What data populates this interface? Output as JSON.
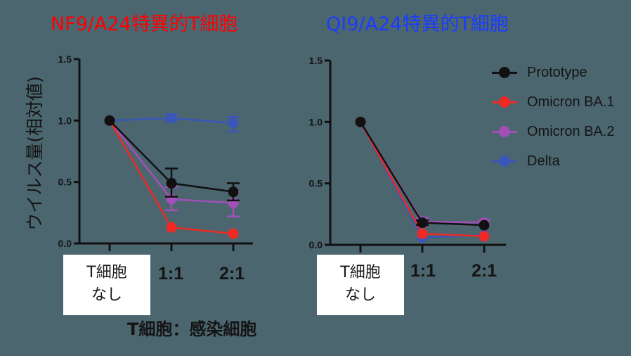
{
  "titles": {
    "left": "NF9/A24特異的T細胞",
    "right": "QI9/A24特異的T細胞"
  },
  "y_axis_label": "ウイルス量(相対値)",
  "x_axis_label": "T細胞：感染細胞",
  "no_tcell_label_line1": "T細胞",
  "no_tcell_label_line2": "なし",
  "x_categories": [
    "T細胞なし",
    "1:1",
    "2:1"
  ],
  "y_ticks": [
    "0.0",
    "0.5",
    "1.0",
    "1.5"
  ],
  "legend": [
    {
      "label": "Prototype",
      "color": "#111111"
    },
    {
      "label": "Omicron BA.1",
      "color": "#ee2a24"
    },
    {
      "label": "Omicron BA.2",
      "color": "#a24fb8"
    },
    {
      "label": "Delta",
      "color": "#3a56b8"
    }
  ],
  "chart_data": [
    {
      "type": "line",
      "title": "NF9/A24特異的T細胞",
      "xlabel": "T細胞：感染細胞",
      "ylabel": "ウイルス量(相対値)",
      "categories": [
        "T細胞なし",
        "1:1",
        "2:1"
      ],
      "ylim": [
        0,
        1.5
      ],
      "yticks": [
        0.0,
        0.5,
        1.0,
        1.5
      ],
      "grid": false,
      "series": [
        {
          "name": "Prototype",
          "color": "#111111",
          "values": [
            1.0,
            0.49,
            0.42
          ],
          "err_low": [
            1.0,
            0.38,
            0.35
          ],
          "err_high": [
            1.0,
            0.61,
            0.49
          ]
        },
        {
          "name": "Omicron BA.1",
          "color": "#ee2a24",
          "values": [
            1.0,
            0.13,
            0.08
          ],
          "err_low": [
            1.0,
            0.12,
            0.07
          ],
          "err_high": [
            1.0,
            0.14,
            0.09
          ]
        },
        {
          "name": "Omicron BA.2",
          "color": "#a24fb8",
          "values": [
            1.0,
            0.36,
            0.33
          ],
          "err_low": [
            1.0,
            0.27,
            0.22
          ],
          "err_high": [
            1.0,
            0.46,
            0.42
          ]
        },
        {
          "name": "Delta",
          "color": "#3a56b8",
          "values": [
            1.0,
            1.02,
            0.98
          ],
          "err_low": [
            1.0,
            0.99,
            0.91
          ],
          "err_high": [
            1.0,
            1.05,
            1.03
          ]
        }
      ]
    },
    {
      "type": "line",
      "title": "QI9/A24特異的T細胞",
      "xlabel": "T細胞：感染細胞",
      "ylabel": "ウイルス量(相対値)",
      "categories": [
        "T細胞なし",
        "1:1",
        "2:1"
      ],
      "ylim": [
        0,
        1.5
      ],
      "yticks": [
        0.0,
        0.5,
        1.0,
        1.5
      ],
      "grid": false,
      "legend_position": "right",
      "series": [
        {
          "name": "Prototype",
          "color": "#111111",
          "values": [
            1.0,
            0.18,
            0.16
          ],
          "err_low": [
            1.0,
            0.16,
            0.15
          ],
          "err_high": [
            1.0,
            0.2,
            0.17
          ]
        },
        {
          "name": "Omicron BA.1",
          "color": "#ee2a24",
          "values": [
            1.0,
            0.09,
            0.07
          ],
          "err_low": [
            1.0,
            0.08,
            0.06
          ],
          "err_high": [
            1.0,
            0.1,
            0.08
          ]
        },
        {
          "name": "Omicron BA.2",
          "color": "#a24fb8",
          "values": [
            1.0,
            0.19,
            0.18
          ],
          "err_low": [
            1.0,
            0.15,
            0.16
          ],
          "err_high": [
            1.0,
            0.22,
            0.2
          ]
        },
        {
          "name": "Delta",
          "color": "#3a56b8",
          "values": [
            1.0,
            0.06,
            0.08
          ],
          "err_low": [
            1.0,
            0.05,
            0.07
          ],
          "err_high": [
            1.0,
            0.07,
            0.09
          ]
        }
      ]
    }
  ]
}
